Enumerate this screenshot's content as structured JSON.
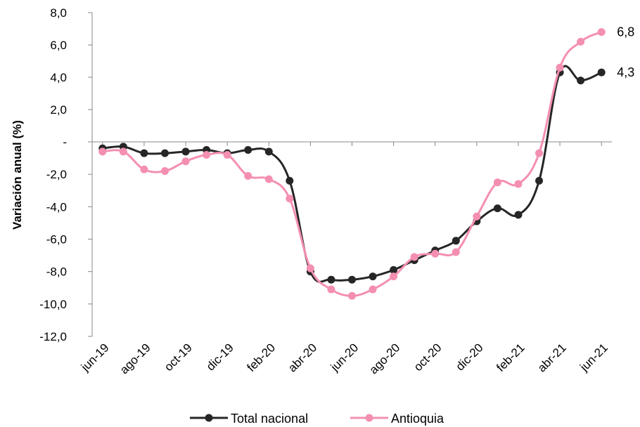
{
  "chart_data": {
    "type": "line",
    "ylabel": "Variación anual (%)",
    "ylim": [
      -12,
      8
    ],
    "yticks": [
      {
        "value": 8,
        "label": "8,0"
      },
      {
        "value": 6,
        "label": "6,0"
      },
      {
        "value": 4,
        "label": "4,0"
      },
      {
        "value": 2,
        "label": "2,0"
      },
      {
        "value": 0,
        "label": "-"
      },
      {
        "value": -2,
        "label": "-2,0"
      },
      {
        "value": -4,
        "label": "-4,0"
      },
      {
        "value": -6,
        "label": "-6,0"
      },
      {
        "value": -8,
        "label": "-8,0"
      },
      {
        "value": -10,
        "label": "-10,0"
      },
      {
        "value": -12,
        "label": "-12,0"
      }
    ],
    "x": [
      "jun-19",
      "jul-19",
      "ago-19",
      "sep-19",
      "oct-19",
      "nov-19",
      "dic-19",
      "ene-20",
      "feb-20",
      "mar-20",
      "abr-20",
      "may-20",
      "jun-20",
      "jul-20",
      "ago-20",
      "sep-20",
      "oct-20",
      "nov-20",
      "dic-20",
      "ene-21",
      "feb-21",
      "mar-21",
      "abr-21",
      "may-21",
      "jun-21"
    ],
    "xtick_labels": [
      "jun-19",
      "ago-19",
      "oct-19",
      "dic-19",
      "feb-20",
      "abr-20",
      "jun-20",
      "ago-20",
      "oct-20",
      "dic-20",
      "feb-21",
      "abr-21",
      "jun-21"
    ],
    "series": [
      {
        "name": "Total nacional",
        "color": "#262626",
        "values": [
          -0.4,
          -0.3,
          -0.7,
          -0.7,
          -0.6,
          -0.5,
          -0.7,
          -0.5,
          -0.6,
          -2.4,
          -8.0,
          -8.5,
          -8.5,
          -8.3,
          -7.9,
          -7.3,
          -6.7,
          -6.1,
          -4.9,
          -4.1,
          -4.5,
          -2.4,
          4.3,
          3.8,
          4.3
        ],
        "end_label": "4,3"
      },
      {
        "name": "Antioquia",
        "color": "#F48FB1",
        "values": [
          -0.6,
          -0.6,
          -1.7,
          -1.8,
          -1.2,
          -0.8,
          -0.8,
          -2.1,
          -2.3,
          -3.5,
          -7.8,
          -9.1,
          -9.5,
          -9.1,
          -8.3,
          -7.1,
          -6.9,
          -6.8,
          -4.6,
          -2.5,
          -2.6,
          -0.7,
          4.6,
          6.2,
          6.8
        ],
        "end_label": "6,8"
      }
    ],
    "legend_position": "bottom",
    "grid": false
  }
}
